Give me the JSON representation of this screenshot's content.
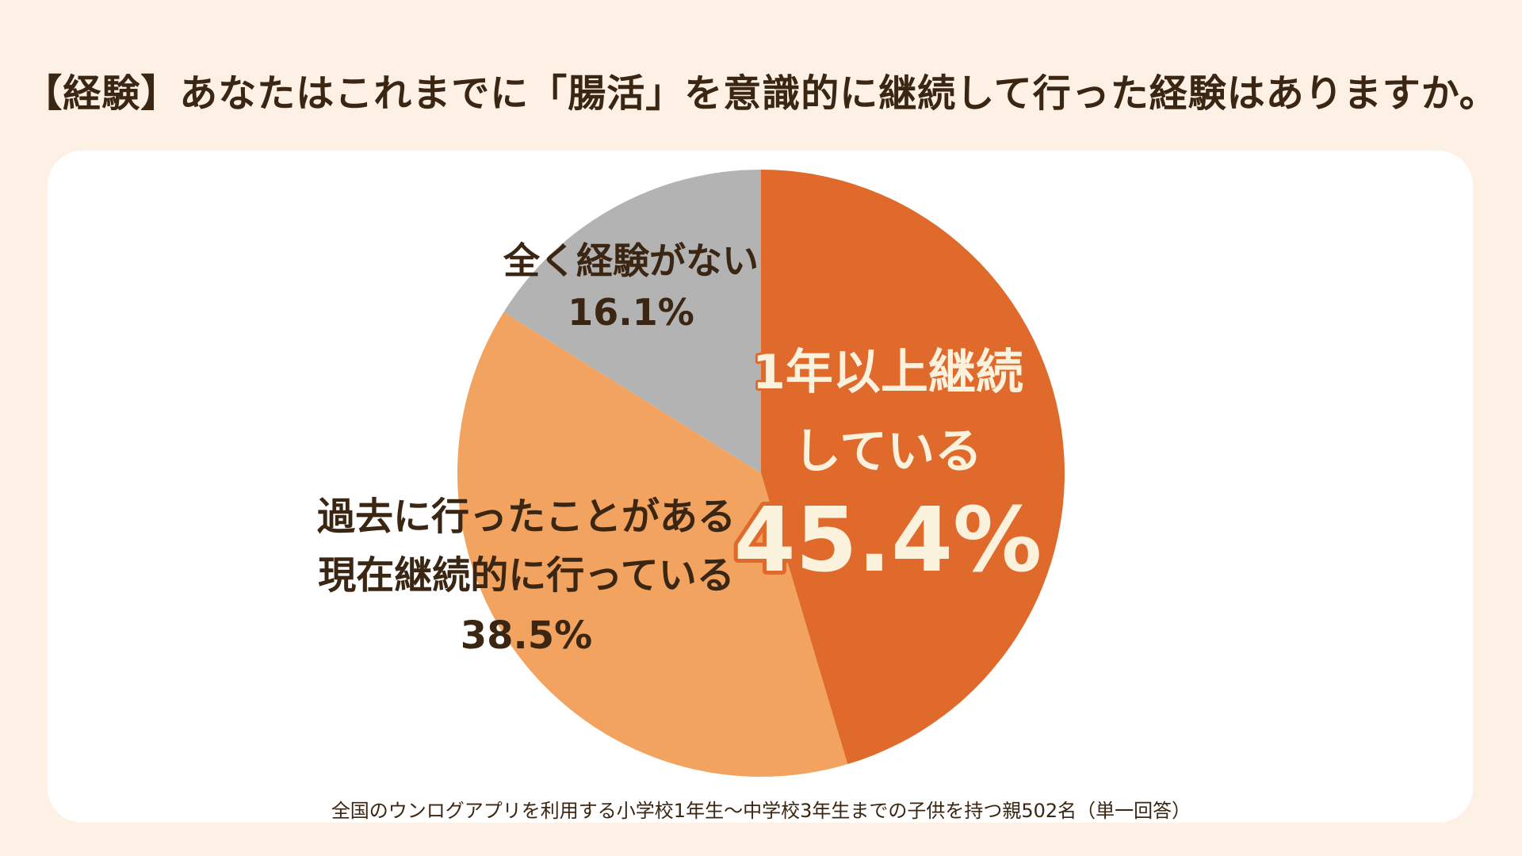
{
  "title": "【経験】あなたはこれまでに「腸活」を意識的に継続して行った経験はありますか。",
  "footnote": "全国のウンログアプリを利用する小学校1年生〜中学校3年生までの子供を持つ親502名（単一回答）",
  "chart_data": {
    "type": "pie",
    "start_angle": "12 o'clock",
    "direction": "clockwise",
    "legend": "none",
    "slices": [
      {
        "label_lines": [
          "1年以上継続",
          "している"
        ],
        "value": 45.4,
        "value_label": "45.4%",
        "color": "#e06a2b",
        "text_color": "#fbf2de"
      },
      {
        "label_lines": [
          "過去に行ったことがある",
          "現在継続的に行っている"
        ],
        "value": 38.5,
        "value_label": "38.5%",
        "color": "#f2a35f",
        "text_color": "#3a2612"
      },
      {
        "label_lines": [
          "全く経験がない"
        ],
        "value": 16.1,
        "value_label": "16.1%",
        "color": "#b3b3b3",
        "text_color": "#3a2612"
      }
    ]
  }
}
